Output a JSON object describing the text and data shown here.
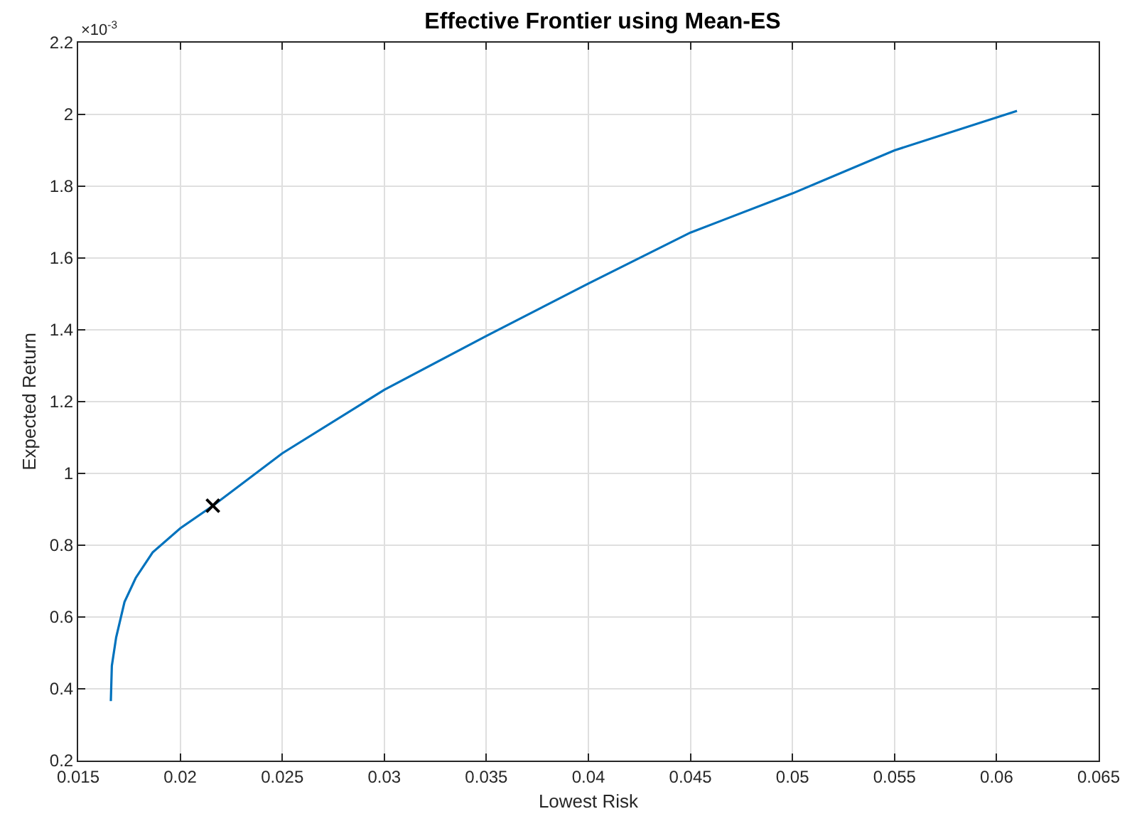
{
  "chart_data": {
    "type": "line",
    "title": "Effective Frontier using Mean-ES",
    "xlabel": "Lowest Risk",
    "ylabel": "Expected Return",
    "annotations": [
      "×10$^{-3}$"
    ],
    "series": [
      {
        "color": "#0072bd",
        "marker": "none",
        "x": [
          0.0166,
          0.01665,
          0.01686,
          0.01727,
          0.01782,
          0.01865,
          0.02,
          0.0216,
          0.025,
          0.03,
          0.035,
          0.04,
          0.045,
          0.05,
          0.055,
          0.061
        ],
        "values": [
          0.366,
          0.464,
          0.543,
          0.642,
          0.709,
          0.78,
          0.847,
          0.91,
          1.056,
          1.233,
          1.383,
          1.529,
          1.671,
          1.78,
          1.9,
          2.01
        ]
      },
      {
        "type": "scatter",
        "color": "#000000",
        "marker": "cross",
        "x": [
          0.0216
        ],
        "values": [
          0.91
        ]
      }
    ],
    "xlim": [
      0.015,
      0.065
    ],
    "xticks": [
      0.015,
      0.02,
      0.025,
      0.03,
      0.035,
      0.04,
      0.045,
      0.05,
      0.055,
      0.06,
      0.065
    ],
    "ylim": [
      0.2,
      2.2
    ],
    "yticks": [
      0.2,
      0.4,
      0.6,
      0.8,
      1,
      1.2,
      1.4,
      1.6,
      1.8,
      2,
      2.2
    ],
    "grid": true
  }
}
